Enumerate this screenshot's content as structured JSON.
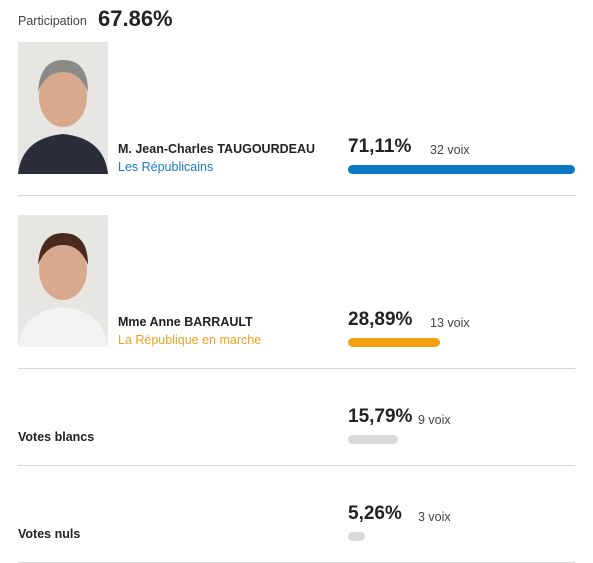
{
  "participation": {
    "label": "Participation",
    "value": "67.86%"
  },
  "rows": [
    {
      "name": "M. Jean-Charles TAUGOURDEAU",
      "party": "Les Républicains",
      "party_color": "#1a7dc0",
      "percent": 71.11,
      "percent_label": "71,11%",
      "votes": "32 voix",
      "bar_color": "#0a78c2",
      "photo": true
    },
    {
      "name": "Mme Anne BARRAULT",
      "party": "La République en marche",
      "party_color": "#f0a020",
      "percent": 28.89,
      "percent_label": "28,89%",
      "votes": "13 voix",
      "bar_color": "#f5a10f",
      "photo": true
    },
    {
      "name": "Votes blancs",
      "percent": 15.79,
      "percent_label": "15,79%",
      "votes": "9 voix",
      "bar_color": "#d9d9d9"
    },
    {
      "name": "Votes nuls",
      "percent": 5.26,
      "percent_label": "5,26%",
      "votes": "3 voix",
      "bar_color": "#d9d9d9"
    }
  ]
}
